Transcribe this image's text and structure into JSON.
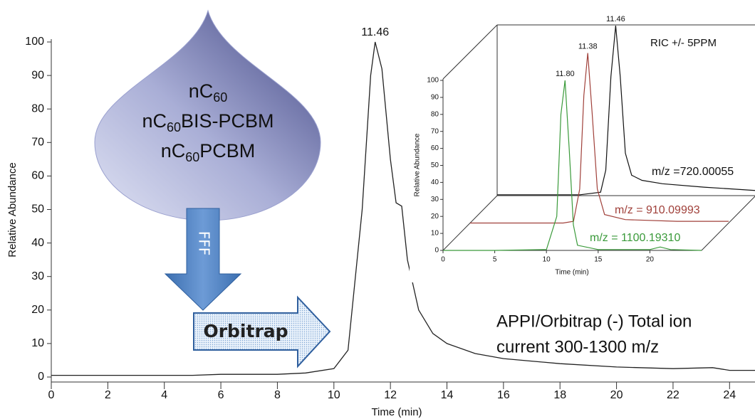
{
  "chart_data": [
    {
      "type": "line",
      "x_label": "Time (min)",
      "y_label": "Relative Abundance",
      "xlim": [
        0,
        24.9
      ],
      "ylim": [
        0,
        100
      ],
      "xticks": [
        0,
        2,
        4,
        6,
        8,
        10,
        12,
        14,
        16,
        18,
        20,
        22,
        24
      ],
      "yticks": [
        0,
        10,
        20,
        30,
        40,
        50,
        60,
        70,
        80,
        90,
        100
      ],
      "series": [
        {
          "color": "#222222",
          "x": [
            0,
            5,
            6,
            8,
            9,
            10,
            10.5,
            11,
            11.3,
            11.46,
            11.7,
            12.0,
            12.2,
            12.4,
            12.6,
            13,
            13.5,
            14,
            15,
            16,
            18,
            20,
            22,
            23.4,
            24,
            24.9
          ],
          "values": [
            0.5,
            0.5,
            0.8,
            0.8,
            1.2,
            2.5,
            8,
            50,
            90,
            100,
            92,
            65,
            52,
            51,
            35,
            20,
            13,
            10,
            7,
            5.5,
            4,
            3,
            2.5,
            2.8,
            2,
            2
          ]
        }
      ],
      "annotations": [
        {
          "text": "11.46",
          "x": 11.46,
          "y": 100
        },
        {
          "text": [
            "APPI/Orbitrap (-) Total ion",
            "current 300-1300 m/z"
          ]
        }
      ]
    },
    {
      "type": "line3d",
      "x_label": "Time (min)",
      "y_label": "Relative Abundance",
      "title": "RIC +/- 5PPM",
      "xlim": [
        0,
        25
      ],
      "ylim": [
        0,
        100
      ],
      "xticks": [
        0,
        5,
        10,
        15,
        20
      ],
      "yticks": [
        0,
        10,
        20,
        30,
        40,
        50,
        60,
        70,
        80,
        90,
        100
      ],
      "series": [
        {
          "name": "m/z =720.00055",
          "color": "#111111",
          "peak_label": "11.46",
          "x": [
            0,
            8,
            10,
            10.5,
            11,
            11.46,
            11.9,
            12.4,
            13,
            14,
            16,
            20,
            25
          ],
          "values": [
            0.5,
            0.5,
            2,
            15,
            70,
            100,
            70,
            25,
            12,
            9,
            7,
            5,
            3
          ]
        },
        {
          "name": "m/z = 910.09993",
          "color": "#a0403a",
          "peak_label": "11.38",
          "x": [
            0,
            9,
            10,
            10.6,
            11,
            11.38,
            11.8,
            12.3,
            13,
            15,
            20,
            25
          ],
          "values": [
            0,
            0,
            1,
            20,
            75,
            100,
            65,
            20,
            5,
            2,
            1,
            1
          ]
        },
        {
          "name": "m/z = 1100.19310",
          "color": "#3a9a3a",
          "peak_label": "11.80",
          "x": [
            0,
            5,
            10,
            11,
            11.4,
            11.8,
            12.2,
            12.6,
            13,
            15,
            20,
            21,
            22,
            25
          ],
          "values": [
            0,
            0,
            0.5,
            20,
            80,
            100,
            60,
            15,
            3,
            0.5,
            0.5,
            2,
            0.5,
            0
          ]
        }
      ]
    }
  ],
  "graphic": {
    "compounds": [
      [
        "nC",
        "60"
      ],
      [
        "nC",
        "60",
        "BIS-PCBM"
      ],
      [
        "nC",
        "60",
        "PCBM"
      ]
    ],
    "down_arrow": "FFF",
    "right_arrow": "Orbitrap"
  }
}
